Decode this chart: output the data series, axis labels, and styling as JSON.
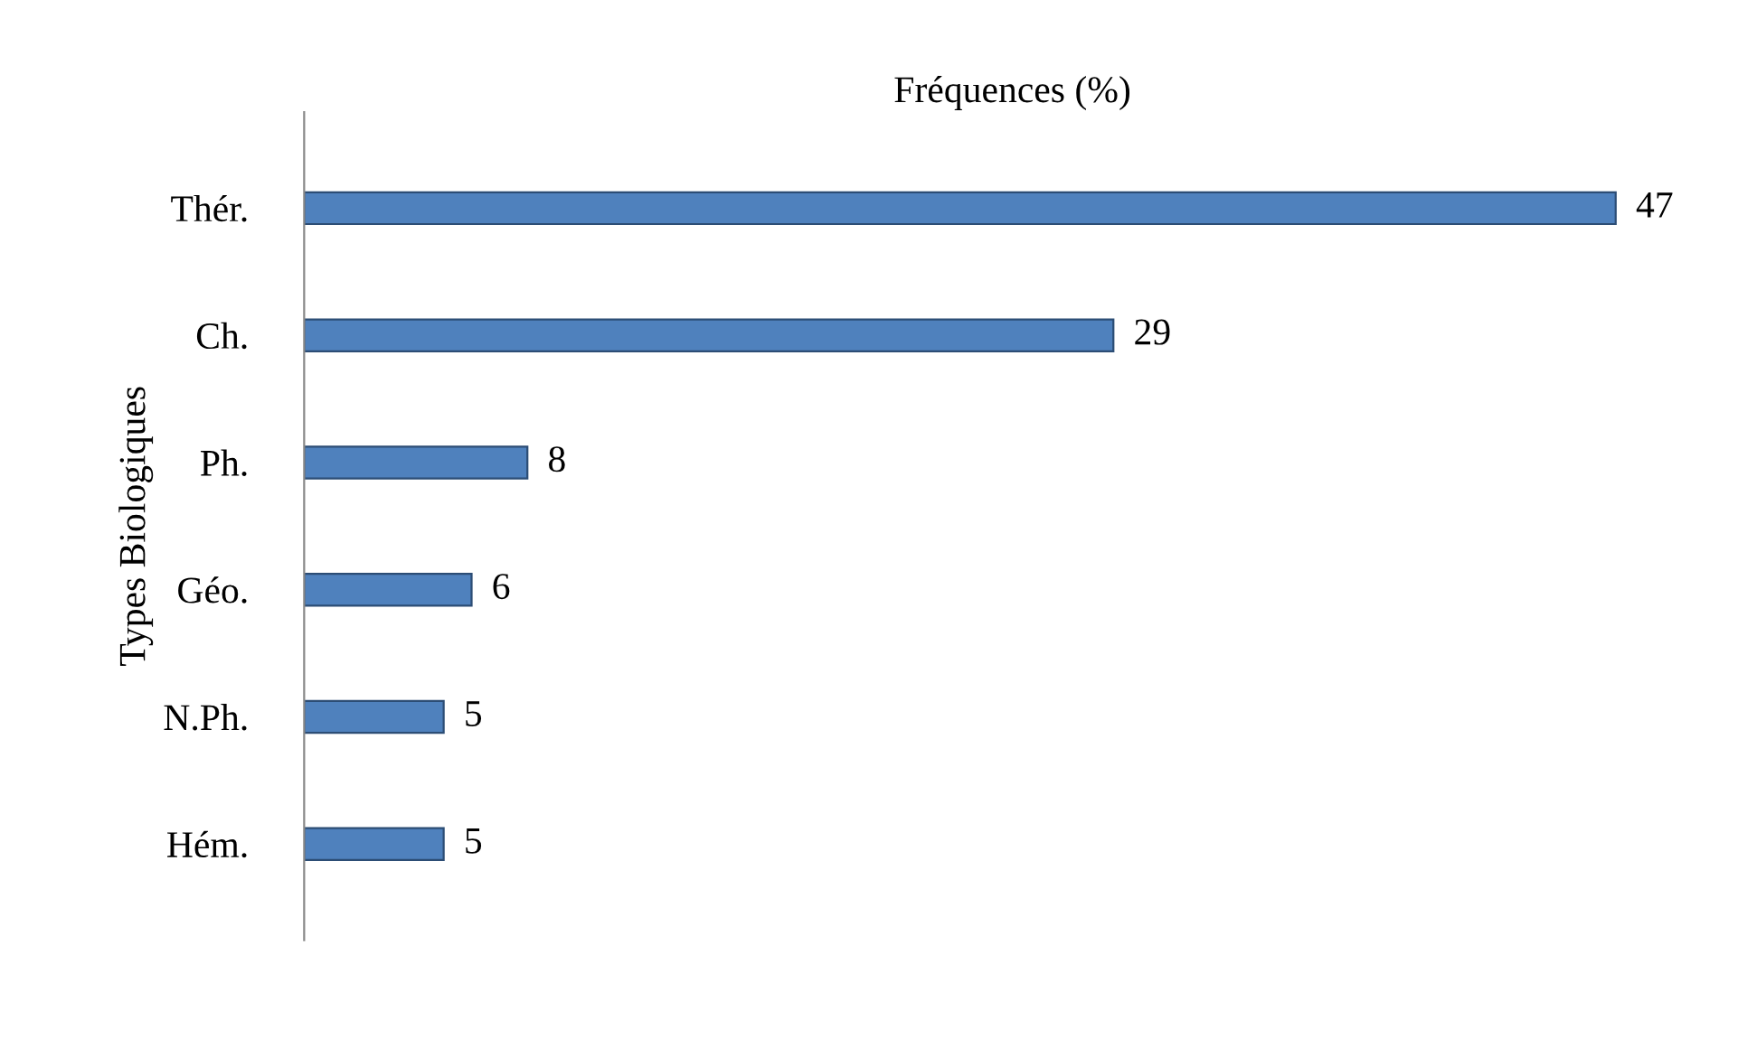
{
  "chart_data": {
    "type": "bar",
    "orientation": "horizontal",
    "xlabel": "Fréquences (%)",
    "ylabel": "Types Biologiques",
    "categories": [
      "Thér.",
      "Ch.",
      "Ph.",
      "Géo.",
      "N.Ph.",
      "Hém."
    ],
    "values": [
      47,
      29,
      8,
      6,
      5,
      5
    ],
    "color": "#4f81bd",
    "data_labels": true,
    "tick_labels": "y",
    "grid": false,
    "legend": false
  }
}
